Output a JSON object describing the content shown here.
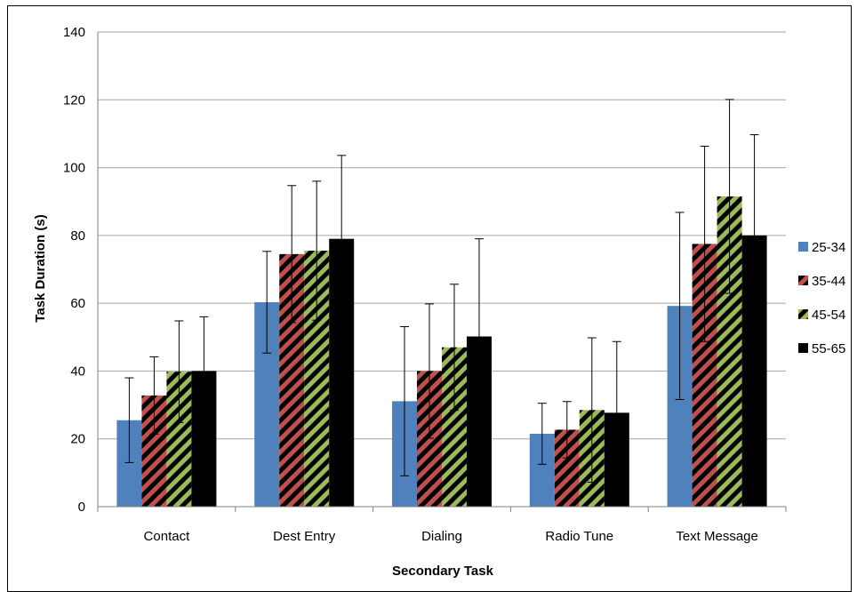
{
  "chart_data": {
    "type": "bar",
    "xlabel": "Secondary Task",
    "ylabel": "Task Duration (s)",
    "ylim": [
      0,
      140
    ],
    "yticks": [
      0,
      20,
      40,
      60,
      80,
      100,
      120,
      140
    ],
    "grid": true,
    "legend_position": "right",
    "categories": [
      "Contact",
      "Dest Entry",
      "Dialing",
      "Radio Tune",
      "Text Message"
    ],
    "series": [
      {
        "name": "25-34",
        "values": [
          25.5,
          60.3,
          31.1,
          21.5,
          59.2
        ],
        "error": [
          12.5,
          15.0,
          22.0,
          9.0,
          27.6
        ],
        "color": "#4f81bd",
        "pattern": "solid"
      },
      {
        "name": "35-44",
        "values": [
          32.8,
          74.5,
          40.0,
          22.7,
          77.5
        ],
        "error": [
          11.4,
          20.2,
          19.8,
          8.3,
          28.8
        ],
        "color": "#c0504d",
        "pattern": "diagonal-stripe"
      },
      {
        "name": "45-54",
        "values": [
          39.8,
          75.5,
          47.0,
          28.5,
          91.5
        ],
        "error": [
          15.0,
          20.5,
          18.6,
          21.3,
          28.6
        ],
        "color": "#9bbb59",
        "pattern": "diagonal-stripe"
      },
      {
        "name": "55-65",
        "values": [
          40.0,
          79.0,
          50.2,
          27.7,
          80.0
        ],
        "error": [
          16.0,
          24.6,
          28.8,
          21.0,
          29.7
        ],
        "color": "#000000",
        "pattern": "solid"
      }
    ]
  }
}
